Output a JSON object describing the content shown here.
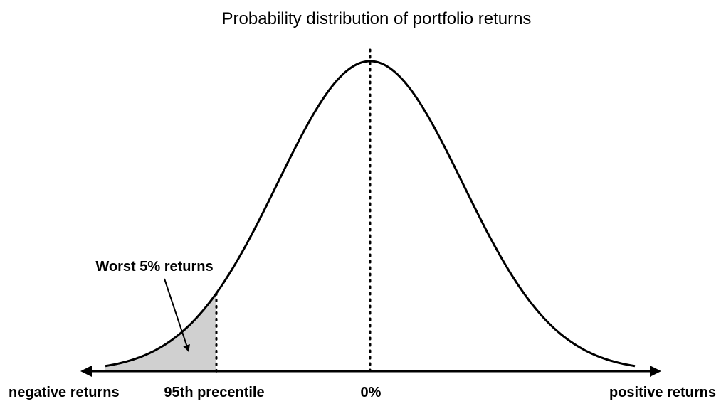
{
  "title": "Probability distribution of portfolio returns",
  "annotation": "Worst 5% returns",
  "axis": {
    "left_label": "negative returns",
    "percentile_label": "95th precentile",
    "center_label": "0%",
    "right_label": "positive returns"
  },
  "colors": {
    "curve": "#000000",
    "tail_fill": "#d0d0d0",
    "axis": "#000000"
  }
}
